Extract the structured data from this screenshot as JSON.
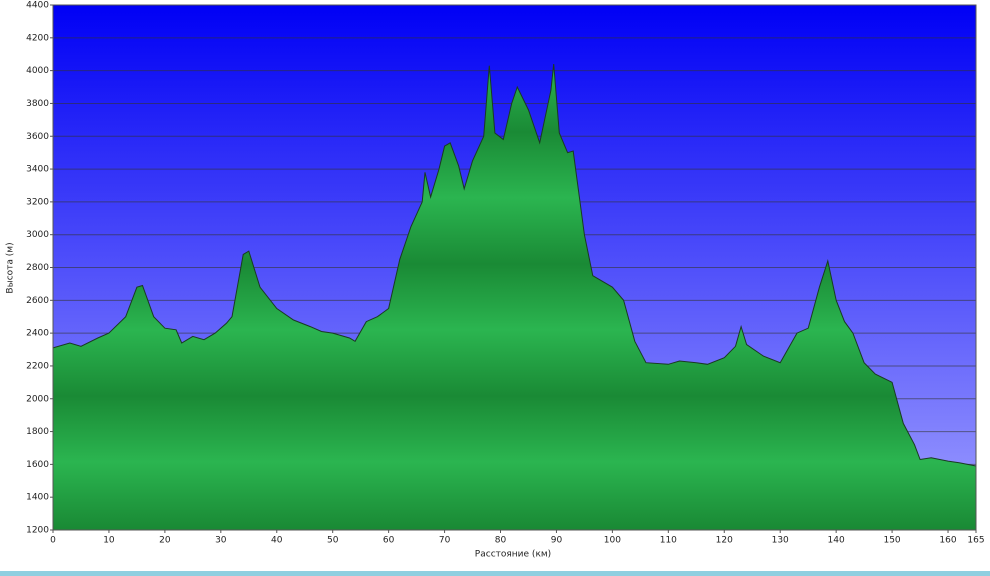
{
  "chart_data": {
    "type": "area",
    "x_label": "Расстояние  (км)",
    "y_label": "Высота (м)",
    "color": "#22a845",
    "x": [
      0,
      3,
      5,
      8,
      10,
      13,
      15,
      16,
      18,
      20,
      22,
      23,
      25,
      27,
      29,
      31,
      32,
      34,
      35,
      37,
      40,
      43,
      46,
      48,
      50,
      53,
      54,
      56,
      58,
      60,
      62,
      64,
      66,
      66.5,
      67.5,
      69,
      70,
      71,
      72.5,
      73.5,
      75,
      77,
      78,
      79,
      80.5,
      82,
      83,
      85,
      87,
      89,
      89.5,
      90.5,
      92,
      93,
      95,
      96.5,
      100,
      102,
      104,
      106,
      110,
      112,
      115,
      117,
      120,
      122,
      123,
      124,
      127,
      130,
      133,
      135,
      137,
      138.5,
      140,
      141.5,
      143,
      145,
      147,
      150,
      152,
      154,
      155,
      157,
      160,
      162,
      165
    ],
    "values": [
      2310,
      2340,
      2320,
      2370,
      2400,
      2500,
      2680,
      2690,
      2500,
      2430,
      2420,
      2340,
      2380,
      2360,
      2400,
      2460,
      2500,
      2880,
      2900,
      2680,
      2550,
      2480,
      2440,
      2410,
      2400,
      2370,
      2350,
      2470,
      2500,
      2550,
      2850,
      3050,
      3200,
      3380,
      3230,
      3400,
      3540,
      3560,
      3420,
      3280,
      3450,
      3600,
      4030,
      3620,
      3580,
      3800,
      3900,
      3760,
      3560,
      3880,
      4040,
      3620,
      3500,
      3510,
      3000,
      2750,
      2680,
      2600,
      2350,
      2220,
      2210,
      2230,
      2220,
      2210,
      2250,
      2320,
      2440,
      2330,
      2260,
      2220,
      2400,
      2430,
      2680,
      2840,
      2600,
      2470,
      2400,
      2220,
      2150,
      2100,
      1850,
      1720,
      1630,
      1640,
      1620,
      1610,
      1590
    ],
    "xlim": [
      0,
      165
    ],
    "xticks": [
      0,
      10,
      20,
      30,
      40,
      50,
      60,
      70,
      80,
      90,
      100,
      110,
      120,
      130,
      140,
      150,
      160,
      165
    ],
    "ylim": [
      1200,
      4400
    ],
    "yticks": [
      1200,
      1400,
      1600,
      1800,
      2000,
      2200,
      2400,
      2600,
      2800,
      3000,
      3200,
      3400,
      3600,
      3800,
      4000,
      4200,
      4400
    ],
    "grid": true
  }
}
